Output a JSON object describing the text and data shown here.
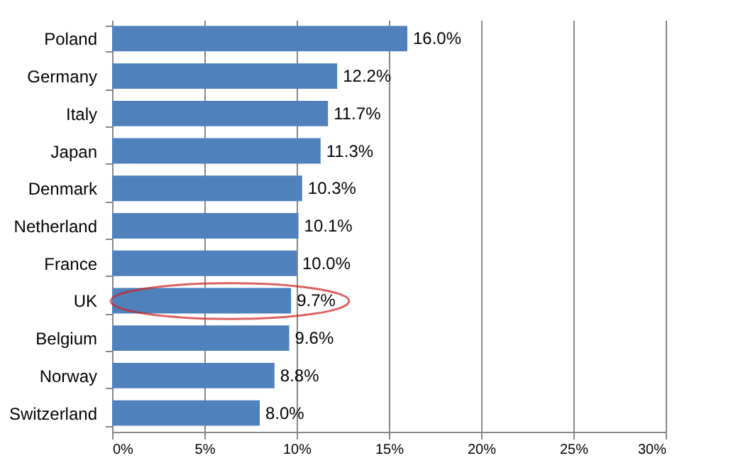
{
  "chart_data": {
    "type": "bar",
    "orientation": "horizontal",
    "categories": [
      "Poland",
      "Germany",
      "Italy",
      "Japan",
      "Denmark",
      "Netherland",
      "France",
      "UK",
      "Belgium",
      "Norway",
      "Switzerland"
    ],
    "values": [
      16.0,
      12.2,
      11.7,
      11.3,
      10.3,
      10.1,
      10.0,
      9.7,
      9.6,
      8.8,
      8.0
    ],
    "value_labels": [
      "16.0%",
      "12.2%",
      "11.7%",
      "11.3%",
      "10.3%",
      "10.1%",
      "10.0%",
      "9.7%",
      "9.6%",
      "8.8%",
      "8.0%"
    ],
    "color": "#4f81bd",
    "xlim": [
      0,
      30
    ],
    "xticks": [
      {
        "value": 0,
        "label": "0%"
      },
      {
        "value": 5,
        "label": "5%"
      },
      {
        "value": 10,
        "label": "10%"
      },
      {
        "value": 15,
        "label": "15%"
      },
      {
        "value": 20,
        "label": "20%"
      },
      {
        "value": 25,
        "label": "25%"
      },
      {
        "value": 30,
        "label": "30%"
      }
    ],
    "grid": "x"
  }
}
